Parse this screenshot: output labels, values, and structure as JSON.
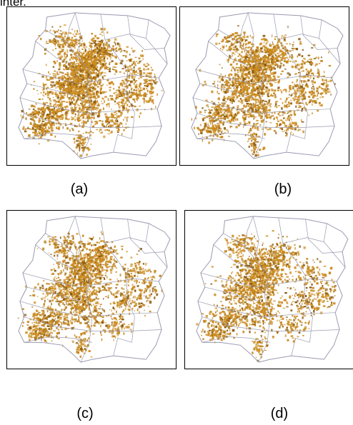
{
  "fragment_text": "inter.",
  "colors": {
    "urban_fill": "#c98a1e",
    "urban_dark": "#8a5a10",
    "boundary": "#9a9ab0",
    "frame": "#000000"
  },
  "panels": [
    {
      "caption": "(a)",
      "density": 1.0
    },
    {
      "caption": "(b)",
      "density": 0.86
    },
    {
      "caption": "(c)",
      "density": 0.82
    },
    {
      "caption": "(d)",
      "density": 0.74
    }
  ]
}
